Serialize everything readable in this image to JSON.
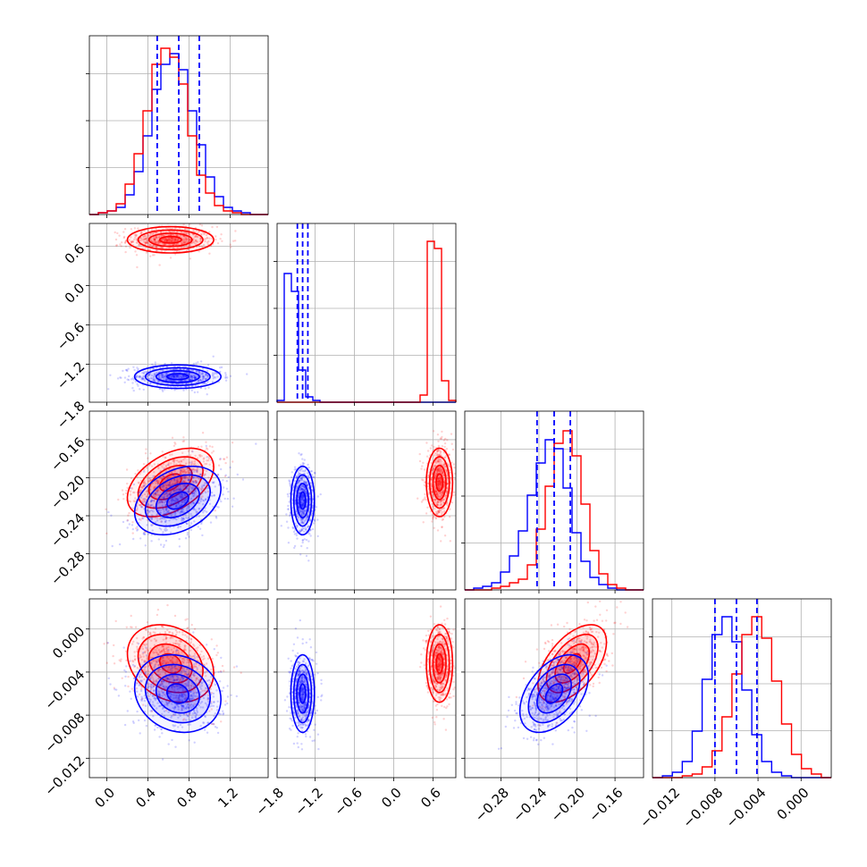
{
  "colors": {
    "series_a": "#ff0000",
    "series_b": "#0000ff",
    "grid": "#b0b0b0",
    "frame": "#000000"
  },
  "chart_data": {
    "type": "corner",
    "grid": true,
    "legend": "none",
    "params": [
      {
        "range": [
          -0.17,
          1.57
        ],
        "ticks": [
          "0.0",
          "0.4",
          "0.8",
          "1.2"
        ],
        "tick_values": [
          0.0,
          0.4,
          0.8,
          1.2
        ],
        "quantiles_series_b": [
          0.49,
          0.7,
          0.9
        ]
      },
      {
        "range": [
          -1.78,
          0.95
        ],
        "ticks": [
          "−1.8",
          "−1.2",
          "−0.6",
          "0.0",
          "0.6"
        ],
        "tick_values": [
          -1.8,
          -1.2,
          -0.6,
          0.0,
          0.6
        ],
        "quantiles_series_b": [
          -1.47,
          -1.39,
          -1.31
        ]
      },
      {
        "range": [
          -0.318,
          -0.13
        ],
        "ticks": [
          "−0.28",
          "−0.24",
          "−0.20",
          "−0.16"
        ],
        "tick_values": [
          -0.28,
          -0.24,
          -0.2,
          -0.16
        ],
        "quantiles_series_b": [
          -0.242,
          -0.224,
          -0.207
        ]
      },
      {
        "range": [
          -0.0138,
          0.0028
        ],
        "ticks": [
          "−0.012",
          "−0.008",
          "−0.004",
          "0.000"
        ],
        "tick_values": [
          -0.012,
          -0.008,
          -0.004,
          0.0
        ],
        "quantiles_series_b": [
          -0.008,
          -0.006,
          -0.0041
        ]
      }
    ],
    "series": [
      {
        "name": "",
        "color": "#ff0000",
        "mean": [
          0.62,
          0.7,
          -0.205,
          -0.0032
        ],
        "sd": [
          0.21,
          0.1,
          0.018,
          0.0018
        ],
        "corr": {
          "0_2": 0.45,
          "0_3": -0.25,
          "2_3": 0.55
        }
      },
      {
        "name": "",
        "color": "#0000ff",
        "mean": [
          0.69,
          -1.39,
          -0.224,
          -0.006
        ],
        "sd": [
          0.21,
          0.09,
          0.018,
          0.0018
        ],
        "corr": {
          "0_2": 0.35,
          "0_3": -0.15,
          "2_3": 0.45
        }
      }
    ],
    "histograms": [
      {
        "bins": [
          -0.17,
          1.57
        ],
        "series_a": [
          0,
          1,
          2,
          6,
          17,
          34,
          58,
          84,
          93,
          88,
          73,
          44,
          22,
          12,
          5,
          2,
          1,
          0,
          0,
          0
        ],
        "series_b": [
          0,
          1,
          2,
          4,
          11,
          24,
          44,
          70,
          84,
          90,
          81,
          58,
          39,
          21,
          10,
          4,
          2,
          1,
          0,
          0
        ]
      },
      {
        "bins": [
          -1.78,
          0.95
        ],
        "series_a": [
          0,
          0,
          0,
          0,
          0,
          0,
          0,
          0,
          0,
          0,
          0,
          0,
          0,
          0,
          0,
          0,
          0,
          0,
          0,
          0,
          4,
          90,
          86,
          12,
          1
        ],
        "series_b": [
          1,
          72,
          62,
          18,
          3,
          1,
          0,
          0,
          0,
          0,
          0,
          0,
          0,
          0,
          0,
          0,
          0,
          0,
          0,
          0,
          0,
          0,
          0,
          0,
          0
        ]
      },
      {
        "bins": [
          -0.318,
          -0.13
        ],
        "series_a": [
          0,
          0,
          0,
          1,
          2,
          4,
          6,
          14,
          34,
          58,
          82,
          89,
          75,
          48,
          22,
          9,
          3,
          1,
          0,
          0
        ],
        "series_b": [
          0,
          1,
          2,
          4,
          10,
          19,
          33,
          53,
          71,
          84,
          79,
          57,
          32,
          16,
          7,
          3,
          1,
          0,
          0,
          0
        ]
      },
      {
        "bins": [
          -0.0138,
          0.0028
        ],
        "series_a": [
          0,
          0,
          0,
          1,
          2,
          6,
          15,
          34,
          58,
          80,
          90,
          78,
          54,
          30,
          13,
          5,
          2,
          0
        ],
        "series_b": [
          0,
          1,
          3,
          9,
          26,
          55,
          80,
          90,
          76,
          49,
          24,
          9,
          3,
          1,
          0,
          0,
          0,
          0
        ]
      }
    ]
  }
}
